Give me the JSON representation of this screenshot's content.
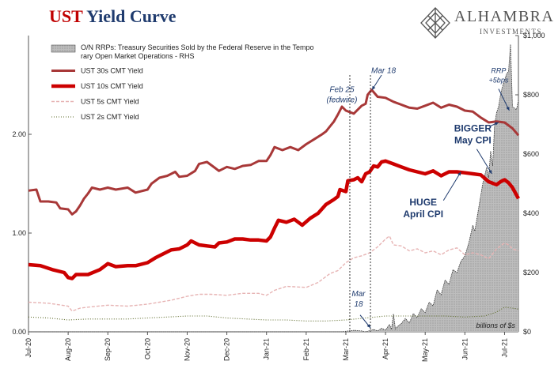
{
  "title": {
    "part1": "UST",
    "part2": "Yield Curve"
  },
  "logo": {
    "name": "ALHAMBRA",
    "sub": "INVESTMENTS",
    "icon": "diamond-lattice-icon"
  },
  "colors": {
    "ust30": "#a83838",
    "ust10": "#cc0000",
    "ust5": "#e7b4b4",
    "ust2": "#5d6b2a",
    "rrp_fill": "#bdbdbd",
    "rrp_stroke": "#333333",
    "annotation": "#1f3b6e",
    "title_red": "#c00000"
  },
  "chart_data": {
    "type": "line",
    "x_ticks": [
      "Jul-20",
      "Aug-20",
      "Sep-20",
      "Oct-20",
      "Nov-20",
      "Dec-20",
      "Jan-21",
      "Feb-21",
      "Mar-21",
      "Apr-21",
      "May-21",
      "Jun-21",
      "Jul-21"
    ],
    "left_axis": {
      "ticks": [
        "0.00",
        "1.00",
        "2.00"
      ],
      "ylim": [
        0,
        3.0
      ]
    },
    "right_axis": {
      "ticks": [
        "$0",
        "$200",
        "$400",
        "$600",
        "$800",
        "$1,000"
      ],
      "ylim": [
        0,
        1000
      ]
    },
    "right_axis_note": "billions of $s",
    "series": [
      {
        "key": "rrp",
        "name": "O/N RRPs: Treasury Securities Sold by the Federal Reserve in the Temporary Open Market Operations - RHS",
        "axis": "right",
        "style": "area",
        "points": [
          [
            0,
            0
          ],
          [
            7.9,
            0
          ],
          [
            8.0,
            2
          ],
          [
            8.2,
            5
          ],
          [
            8.4,
            3
          ],
          [
            8.5,
            0
          ],
          [
            8.7,
            8
          ],
          [
            8.8,
            3
          ],
          [
            8.9,
            12
          ],
          [
            9.0,
            6
          ],
          [
            9.1,
            25
          ],
          [
            9.15,
            8
          ],
          [
            9.2,
            60
          ],
          [
            9.25,
            10
          ],
          [
            9.3,
            18
          ],
          [
            9.4,
            28
          ],
          [
            9.5,
            45
          ],
          [
            9.6,
            30
          ],
          [
            9.7,
            62
          ],
          [
            9.8,
            48
          ],
          [
            9.9,
            78
          ],
          [
            10.0,
            65
          ],
          [
            10.1,
            100
          ],
          [
            10.2,
            88
          ],
          [
            10.3,
            142
          ],
          [
            10.4,
            125
          ],
          [
            10.5,
            175
          ],
          [
            10.6,
            160
          ],
          [
            10.7,
            210
          ],
          [
            10.8,
            200
          ],
          [
            10.9,
            238
          ],
          [
            11.0,
            256
          ],
          [
            11.1,
            300
          ],
          [
            11.2,
            360
          ],
          [
            11.25,
            340
          ],
          [
            11.35,
            420
          ],
          [
            11.45,
            500
          ],
          [
            11.55,
            555
          ],
          [
            11.6,
            520
          ],
          [
            11.65,
            610
          ],
          [
            11.7,
            560
          ],
          [
            11.75,
            700
          ],
          [
            11.8,
            740
          ],
          [
            11.85,
            760
          ],
          [
            11.9,
            800
          ],
          [
            11.95,
            830
          ],
          [
            12.0,
            850
          ],
          [
            12.05,
            870
          ],
          [
            12.1,
            880
          ],
          [
            12.15,
            970
          ],
          [
            12.2,
            760
          ],
          [
            12.3,
            750
          ],
          [
            12.35,
            782
          ]
        ]
      },
      {
        "key": "ust30",
        "name": "UST 30s CMT Yield",
        "axis": "left",
        "style": "line",
        "points": [
          [
            0,
            1.43
          ],
          [
            0.2,
            1.44
          ],
          [
            0.3,
            1.32
          ],
          [
            0.5,
            1.32
          ],
          [
            0.7,
            1.31
          ],
          [
            0.8,
            1.25
          ],
          [
            1.0,
            1.24
          ],
          [
            1.1,
            1.19
          ],
          [
            1.2,
            1.22
          ],
          [
            1.3,
            1.28
          ],
          [
            1.4,
            1.35
          ],
          [
            1.5,
            1.4
          ],
          [
            1.6,
            1.46
          ],
          [
            1.8,
            1.44
          ],
          [
            2.0,
            1.46
          ],
          [
            2.2,
            1.44
          ],
          [
            2.5,
            1.46
          ],
          [
            2.7,
            1.41
          ],
          [
            3.0,
            1.44
          ],
          [
            3.1,
            1.5
          ],
          [
            3.3,
            1.56
          ],
          [
            3.5,
            1.58
          ],
          [
            3.7,
            1.62
          ],
          [
            3.8,
            1.57
          ],
          [
            4.0,
            1.58
          ],
          [
            4.2,
            1.63
          ],
          [
            4.3,
            1.7
          ],
          [
            4.5,
            1.72
          ],
          [
            4.7,
            1.66
          ],
          [
            4.8,
            1.63
          ],
          [
            5.0,
            1.67
          ],
          [
            5.2,
            1.65
          ],
          [
            5.4,
            1.68
          ],
          [
            5.6,
            1.69
          ],
          [
            5.8,
            1.73
          ],
          [
            6.0,
            1.73
          ],
          [
            6.1,
            1.79
          ],
          [
            6.2,
            1.87
          ],
          [
            6.4,
            1.84
          ],
          [
            6.6,
            1.87
          ],
          [
            6.8,
            1.84
          ],
          [
            7.0,
            1.9
          ],
          [
            7.2,
            1.95
          ],
          [
            7.4,
            2.0
          ],
          [
            7.5,
            2.03
          ],
          [
            7.6,
            2.08
          ],
          [
            7.7,
            2.13
          ],
          [
            7.8,
            2.2
          ],
          [
            7.9,
            2.28
          ],
          [
            8.0,
            2.24
          ],
          [
            8.2,
            2.21
          ],
          [
            8.4,
            2.29
          ],
          [
            8.5,
            2.31
          ],
          [
            8.55,
            2.4
          ],
          [
            8.65,
            2.45
          ],
          [
            8.8,
            2.38
          ],
          [
            9.0,
            2.37
          ],
          [
            9.2,
            2.33
          ],
          [
            9.4,
            2.3
          ],
          [
            9.6,
            2.27
          ],
          [
            9.8,
            2.26
          ],
          [
            10.0,
            2.29
          ],
          [
            10.2,
            2.32
          ],
          [
            10.4,
            2.27
          ],
          [
            10.6,
            2.3
          ],
          [
            10.8,
            2.28
          ],
          [
            11.0,
            2.24
          ],
          [
            11.2,
            2.23
          ],
          [
            11.4,
            2.17
          ],
          [
            11.6,
            2.12
          ],
          [
            11.8,
            2.13
          ],
          [
            12.0,
            2.12
          ],
          [
            12.2,
            2.06
          ],
          [
            12.35,
            1.99
          ]
        ]
      },
      {
        "key": "ust10",
        "name": "UST 10s CMT Yield",
        "axis": "left",
        "style": "thick-line",
        "points": [
          [
            0,
            0.68
          ],
          [
            0.3,
            0.67
          ],
          [
            0.6,
            0.63
          ],
          [
            0.9,
            0.6
          ],
          [
            1.0,
            0.55
          ],
          [
            1.1,
            0.54
          ],
          [
            1.2,
            0.58
          ],
          [
            1.5,
            0.58
          ],
          [
            1.8,
            0.63
          ],
          [
            2.0,
            0.69
          ],
          [
            2.2,
            0.66
          ],
          [
            2.5,
            0.67
          ],
          [
            2.7,
            0.67
          ],
          [
            3.0,
            0.7
          ],
          [
            3.2,
            0.75
          ],
          [
            3.4,
            0.79
          ],
          [
            3.6,
            0.83
          ],
          [
            3.8,
            0.84
          ],
          [
            4.0,
            0.88
          ],
          [
            4.1,
            0.92
          ],
          [
            4.3,
            0.88
          ],
          [
            4.5,
            0.87
          ],
          [
            4.7,
            0.86
          ],
          [
            4.8,
            0.9
          ],
          [
            5.0,
            0.91
          ],
          [
            5.2,
            0.94
          ],
          [
            5.4,
            0.94
          ],
          [
            5.6,
            0.93
          ],
          [
            5.8,
            0.93
          ],
          [
            6.0,
            0.92
          ],
          [
            6.1,
            0.96
          ],
          [
            6.2,
            1.05
          ],
          [
            6.3,
            1.13
          ],
          [
            6.5,
            1.11
          ],
          [
            6.7,
            1.14
          ],
          [
            6.9,
            1.08
          ],
          [
            7.1,
            1.15
          ],
          [
            7.3,
            1.2
          ],
          [
            7.5,
            1.29
          ],
          [
            7.7,
            1.34
          ],
          [
            7.8,
            1.37
          ],
          [
            7.85,
            1.44
          ],
          [
            8.0,
            1.42
          ],
          [
            8.05,
            1.53
          ],
          [
            8.2,
            1.54
          ],
          [
            8.3,
            1.56
          ],
          [
            8.4,
            1.52
          ],
          [
            8.5,
            1.6
          ],
          [
            8.6,
            1.62
          ],
          [
            8.7,
            1.68
          ],
          [
            8.8,
            1.67
          ],
          [
            8.9,
            1.72
          ],
          [
            9.0,
            1.73
          ],
          [
            9.2,
            1.7
          ],
          [
            9.4,
            1.67
          ],
          [
            9.6,
            1.64
          ],
          [
            9.8,
            1.62
          ],
          [
            10.0,
            1.6
          ],
          [
            10.2,
            1.63
          ],
          [
            10.4,
            1.58
          ],
          [
            10.6,
            1.62
          ],
          [
            10.8,
            1.62
          ],
          [
            11.0,
            1.61
          ],
          [
            11.2,
            1.6
          ],
          [
            11.4,
            1.59
          ],
          [
            11.6,
            1.52
          ],
          [
            11.8,
            1.49
          ],
          [
            11.9,
            1.52
          ],
          [
            12.0,
            1.54
          ],
          [
            12.1,
            1.51
          ],
          [
            12.2,
            1.46
          ],
          [
            12.35,
            1.35
          ]
        ]
      },
      {
        "key": "ust5",
        "name": "UST 5s CMT Yield",
        "axis": "left",
        "style": "dashed",
        "points": [
          [
            0,
            0.3
          ],
          [
            0.5,
            0.29
          ],
          [
            1.0,
            0.26
          ],
          [
            1.1,
            0.21
          ],
          [
            1.3,
            0.24
          ],
          [
            1.5,
            0.25
          ],
          [
            2.0,
            0.27
          ],
          [
            2.5,
            0.26
          ],
          [
            3.0,
            0.28
          ],
          [
            3.3,
            0.3
          ],
          [
            3.6,
            0.32
          ],
          [
            4.0,
            0.36
          ],
          [
            4.3,
            0.38
          ],
          [
            4.6,
            0.38
          ],
          [
            5.0,
            0.37
          ],
          [
            5.4,
            0.39
          ],
          [
            5.8,
            0.39
          ],
          [
            6.0,
            0.37
          ],
          [
            6.2,
            0.42
          ],
          [
            6.5,
            0.46
          ],
          [
            7.0,
            0.45
          ],
          [
            7.3,
            0.5
          ],
          [
            7.6,
            0.59
          ],
          [
            7.8,
            0.62
          ],
          [
            8.0,
            0.7
          ],
          [
            8.2,
            0.75
          ],
          [
            8.4,
            0.77
          ],
          [
            8.6,
            0.8
          ],
          [
            8.8,
            0.86
          ],
          [
            9.0,
            0.94
          ],
          [
            9.1,
            0.97
          ],
          [
            9.2,
            0.88
          ],
          [
            9.4,
            0.87
          ],
          [
            9.6,
            0.82
          ],
          [
            9.8,
            0.84
          ],
          [
            10.0,
            0.8
          ],
          [
            10.2,
            0.82
          ],
          [
            10.4,
            0.78
          ],
          [
            10.6,
            0.83
          ],
          [
            10.8,
            0.85
          ],
          [
            11.0,
            0.78
          ],
          [
            11.2,
            0.8
          ],
          [
            11.4,
            0.78
          ],
          [
            11.6,
            0.74
          ],
          [
            11.8,
            0.84
          ],
          [
            12.0,
            0.9
          ],
          [
            12.1,
            0.88
          ],
          [
            12.2,
            0.84
          ],
          [
            12.35,
            0.82
          ]
        ]
      },
      {
        "key": "ust2",
        "name": "UST 2s CMT Yield",
        "axis": "left",
        "style": "dotted",
        "points": [
          [
            0,
            0.15
          ],
          [
            0.5,
            0.14
          ],
          [
            1.0,
            0.12
          ],
          [
            1.5,
            0.13
          ],
          [
            2.0,
            0.13
          ],
          [
            2.5,
            0.13
          ],
          [
            3.0,
            0.14
          ],
          [
            3.5,
            0.15
          ],
          [
            4.0,
            0.16
          ],
          [
            4.5,
            0.16
          ],
          [
            5.0,
            0.14
          ],
          [
            5.5,
            0.13
          ],
          [
            6.0,
            0.12
          ],
          [
            6.5,
            0.12
          ],
          [
            7.0,
            0.11
          ],
          [
            7.5,
            0.11
          ],
          [
            8.0,
            0.12
          ],
          [
            8.5,
            0.14
          ],
          [
            9.0,
            0.16
          ],
          [
            9.5,
            0.16
          ],
          [
            10.0,
            0.16
          ],
          [
            10.5,
            0.16
          ],
          [
            11.0,
            0.15
          ],
          [
            11.5,
            0.16
          ],
          [
            11.8,
            0.2
          ],
          [
            12.0,
            0.25
          ],
          [
            12.2,
            0.24
          ],
          [
            12.35,
            0.23
          ]
        ]
      }
    ],
    "vlines": [
      8.1,
      8.62
    ],
    "annotations": [
      {
        "key": "feb25",
        "text": [
          "Feb 25",
          "(fedwire)"
        ],
        "x": 7.9,
        "y": 2.43
      },
      {
        "key": "mar18_top",
        "text": [
          "Mar 18"
        ],
        "x": 8.95,
        "y": 2.62
      },
      {
        "key": "mar18_bottom",
        "text": [
          "Mar",
          "18"
        ],
        "x": 8.32,
        "y": 0.36
      },
      {
        "key": "rrp5bps",
        "text": [
          "RRP",
          "+5bps"
        ],
        "x": 11.85,
        "y": 2.62
      },
      {
        "key": "bigger",
        "text": [
          "BIGGER",
          "May CPI"
        ],
        "x": 11.2,
        "y": 2.03
      },
      {
        "key": "huge",
        "text": [
          "HUGE",
          "April CPI"
        ],
        "x": 9.95,
        "y": 1.28
      }
    ]
  }
}
